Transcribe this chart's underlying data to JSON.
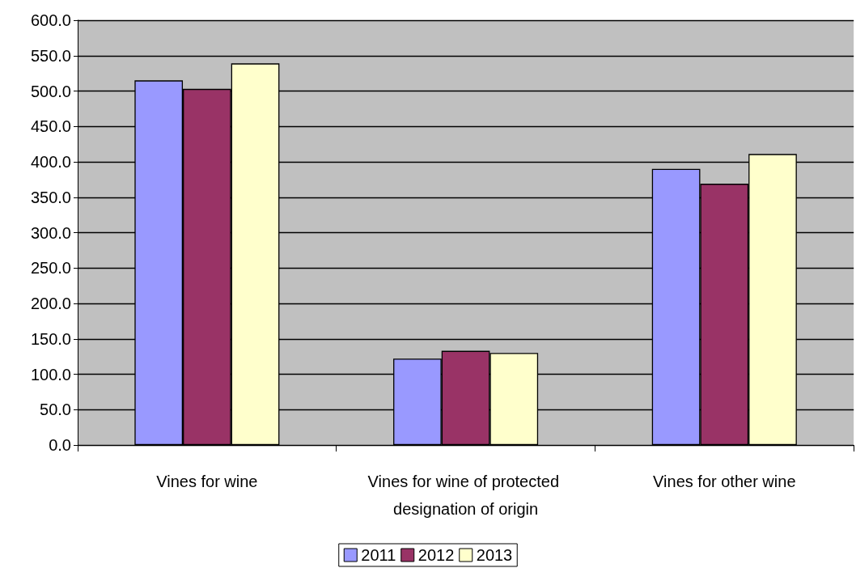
{
  "chart_data": {
    "type": "bar",
    "categories": [
      "Vines for wine",
      "Vines for wine of protected designation of origin",
      "Vines for other wine"
    ],
    "series": [
      {
        "name": "2011",
        "color": "#9999ff",
        "values": [
          515,
          122,
          390
        ]
      },
      {
        "name": "2012",
        "color": "#993366",
        "values": [
          503,
          133,
          369
        ]
      },
      {
        "name": "2013",
        "color": "#ffffcc",
        "values": [
          539,
          130,
          411
        ]
      }
    ],
    "ylim": [
      0,
      600
    ],
    "yticks": [
      {
        "value": 0,
        "label": "0.0"
      },
      {
        "value": 50,
        "label": "50.0"
      },
      {
        "value": 100,
        "label": "100.0"
      },
      {
        "value": 150,
        "label": "150.0"
      },
      {
        "value": 200,
        "label": "200.0"
      },
      {
        "value": 250,
        "label": "250.0"
      },
      {
        "value": 300,
        "label": "300.0"
      },
      {
        "value": 350,
        "label": "350.0"
      },
      {
        "value": 400,
        "label": "400.0"
      },
      {
        "value": 450,
        "label": "450.0"
      },
      {
        "value": 500,
        "label": "500.0"
      },
      {
        "value": 550,
        "label": "550.0"
      },
      {
        "value": 600,
        "label": "600.0"
      }
    ],
    "grid": "y",
    "legend": "bottom"
  }
}
